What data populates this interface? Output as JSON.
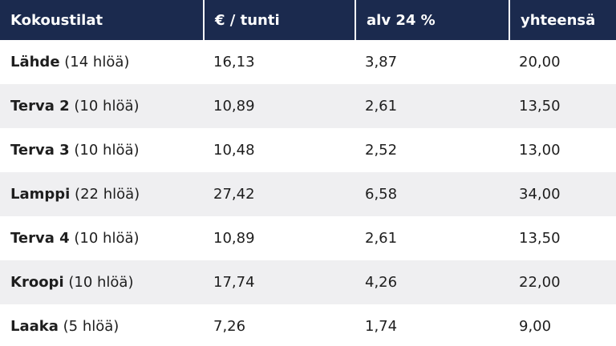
{
  "header": [
    "Kokoustilat",
    "€ / tunti",
    "alv 24 %",
    "yhteensä"
  ],
  "rows": [
    {
      "name": "Lähde",
      "capacity": "(14 hlöä)",
      "price": "16,13",
      "vat": "3,87",
      "total": "20,00"
    },
    {
      "name": "Terva 2",
      "capacity": "(10 hlöä)",
      "price": "10,89",
      "vat": "2,61",
      "total": "13,50"
    },
    {
      "name": "Terva 3",
      "capacity": "(10 hlöä)",
      "price": "10,48",
      "vat": "2,52",
      "total": "13,00"
    },
    {
      "name": "Lamppi",
      "capacity": "(22 hlöä)",
      "price": "27,42",
      "vat": "6,58",
      "total": "34,00"
    },
    {
      "name": "Terva 4",
      "capacity": "(10 hlöä)",
      "price": "10,89",
      "vat": "2,61",
      "total": "13,50"
    },
    {
      "name": "Kroopi",
      "capacity": "(10 hlöä)",
      "price": "17,74",
      "vat": "4,26",
      "total": "22,00"
    },
    {
      "name": "Laaka",
      "capacity": "(5 hlöä)",
      "price": "7,26",
      "vat": "1,74",
      "total": "9,00"
    }
  ],
  "colors": {
    "header_bg": "#1b2a4e",
    "stripe_bg": "#efeff1"
  }
}
